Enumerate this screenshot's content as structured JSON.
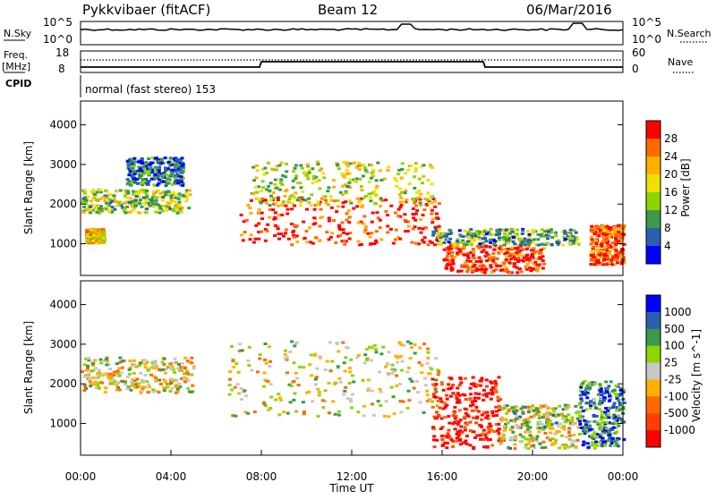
{
  "header": {
    "station": "Pykkvibaer (fitACF)",
    "beam": "Beam 12",
    "date": "06/Mar/2016"
  },
  "top_panels": {
    "nsky_label": "N.Sky",
    "nsky_ticks": [
      "10^5",
      "10^0"
    ],
    "nsearch_label": "N.Search",
    "nsearch_ticks": [
      "10^5",
      "10^0"
    ],
    "freq_label": "Freq.",
    "freq_unit": "[MHz]",
    "freq_ticks": [
      "18",
      "8"
    ],
    "nave_label": "Nave",
    "nave_ticks": [
      "60",
      "0"
    ],
    "cpid_label": "CPID",
    "cpid_text": "normal (fast stereo) 153"
  },
  "chart_data": [
    {
      "type": "heatmap",
      "name": "power-panel",
      "ylabel": "Slant Range [km]",
      "yticks": [
        1000,
        2000,
        3000,
        4000
      ],
      "ylim": [
        200,
        4600
      ],
      "xlim": [
        0,
        24
      ],
      "colorbar": {
        "label": "Power [dB]",
        "ticks": [
          "28",
          "24",
          "20",
          "16",
          "12",
          "8",
          "4"
        ],
        "colors": [
          "#ff0000",
          "#ff6a00",
          "#ffb000",
          "#f0e000",
          "#8fd400",
          "#3a9a4a",
          "#2a5fb0",
          "#0000ff"
        ]
      },
      "regions": [
        {
          "t0": 0.0,
          "t1": 4.8,
          "r0": 1800,
          "r1": 2400,
          "level": 0.45
        },
        {
          "t0": 0.2,
          "t1": 1.0,
          "r0": 1050,
          "r1": 1400,
          "level": 0.65
        },
        {
          "t0": 2.0,
          "t1": 4.5,
          "r0": 2500,
          "r1": 3200,
          "level": 0.2
        },
        {
          "t0": 7.0,
          "t1": 16.0,
          "r0": 1000,
          "r1": 2200,
          "level": 0.9
        },
        {
          "t0": 7.5,
          "t1": 15.5,
          "r0": 2000,
          "r1": 3100,
          "level": 0.5
        },
        {
          "t0": 16.0,
          "t1": 20.5,
          "r0": 300,
          "r1": 1000,
          "level": 0.92
        },
        {
          "t0": 15.5,
          "t1": 22.0,
          "r0": 1000,
          "r1": 1400,
          "level": 0.35
        },
        {
          "t0": 22.5,
          "t1": 24.0,
          "r0": 500,
          "r1": 1500,
          "level": 0.85
        }
      ]
    },
    {
      "type": "heatmap",
      "name": "velocity-panel",
      "ylabel": "Slant Range [km]",
      "xlabel": "Time UT",
      "yticks": [
        1000,
        2000,
        3000,
        4000
      ],
      "xticks": [
        "00:00",
        "04:00",
        "08:00",
        "12:00",
        "16:00",
        "20:00",
        "00:00"
      ],
      "ylim": [
        200,
        4600
      ],
      "xlim": [
        0,
        24
      ],
      "colorbar": {
        "label": "Velocity [m s^-1]",
        "ticks": [
          "1000",
          "500",
          "100",
          "25",
          "-25",
          "-100",
          "-500",
          "-1000"
        ],
        "colors": [
          "#0000ff",
          "#2a5fb0",
          "#3a9a4a",
          "#8fd400",
          "#c8c8c8",
          "#ffb000",
          "#ff6a00",
          "#ff4000",
          "#ff0000"
        ]
      },
      "regions": [
        {
          "t0": 0.0,
          "t1": 5.0,
          "r0": 1800,
          "r1": 2700,
          "level": 0.5
        },
        {
          "t0": 6.5,
          "t1": 15.8,
          "r0": 1200,
          "r1": 3100,
          "level": 0.5
        },
        {
          "t0": 15.5,
          "t1": 18.5,
          "r0": 400,
          "r1": 2200,
          "level": 0.05
        },
        {
          "t0": 18.5,
          "t1": 22.0,
          "r0": 400,
          "r1": 1500,
          "level": 0.55
        },
        {
          "t0": 22.0,
          "t1": 24.0,
          "r0": 400,
          "r1": 2100,
          "level": 0.8
        }
      ]
    }
  ]
}
